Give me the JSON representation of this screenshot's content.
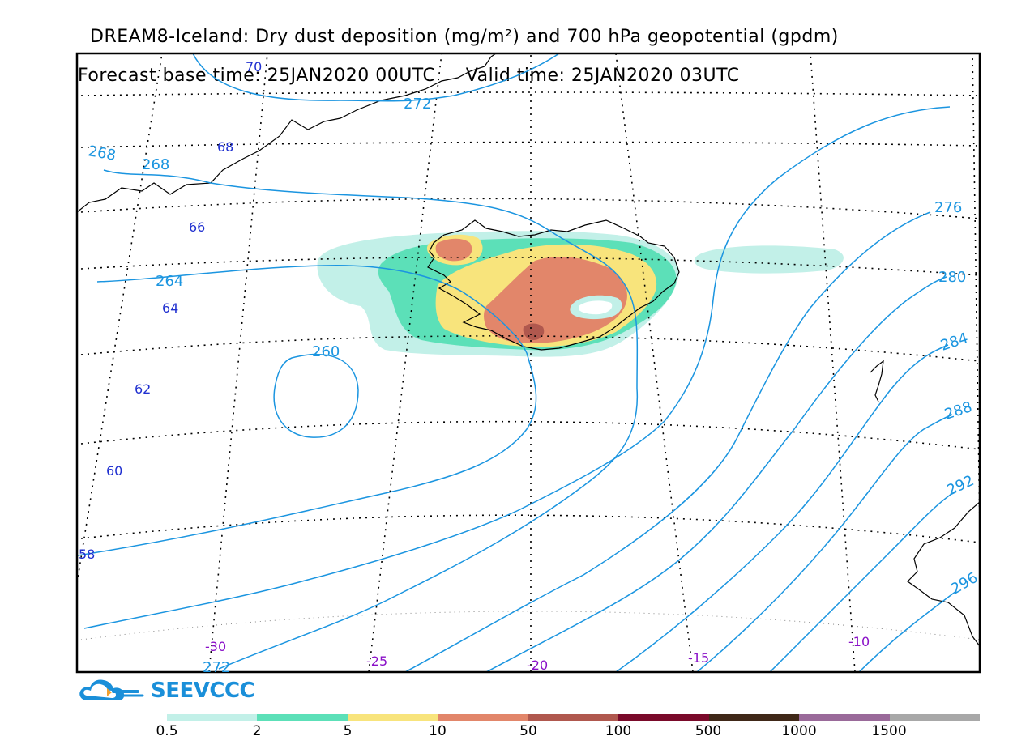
{
  "title": {
    "line1": "DREAM8-Iceland: Dry dust deposition (mg/m²) and 700 hPa geopotential (gpdm)",
    "line2": "Forecast base time: 25JAN2020 00UTC     Valid time: 25JAN2020 03UTC"
  },
  "logo": {
    "text": "SEEVCCC",
    "icon": "cloud-icon",
    "color": "#1a8fd9"
  },
  "lat_labels": [
    "70",
    "68",
    "66",
    "64",
    "62",
    "60",
    "58"
  ],
  "lon_labels": [
    "-30",
    "-25",
    "-20",
    "-15",
    "-10"
  ],
  "contour_labels": [
    "268",
    "268",
    "272",
    "264",
    "260",
    "276",
    "280",
    "284",
    "288",
    "292",
    "296",
    "272"
  ],
  "legend": {
    "colors": [
      "#c2f0e8",
      "#5ce0b8",
      "#f8e47c",
      "#e2866a",
      "#b0584e",
      "#7a0a2a",
      "#402818",
      "#9a6a9a",
      "#a8a8a8"
    ],
    "labels": [
      "0.5",
      "2",
      "5",
      "10",
      "50",
      "100",
      "500",
      "1000",
      "1500"
    ]
  },
  "colors": {
    "contour": "#1b95e0",
    "lat_label": "#2030d0",
    "lon_label": "#8a10c8",
    "coast": "#000000"
  }
}
